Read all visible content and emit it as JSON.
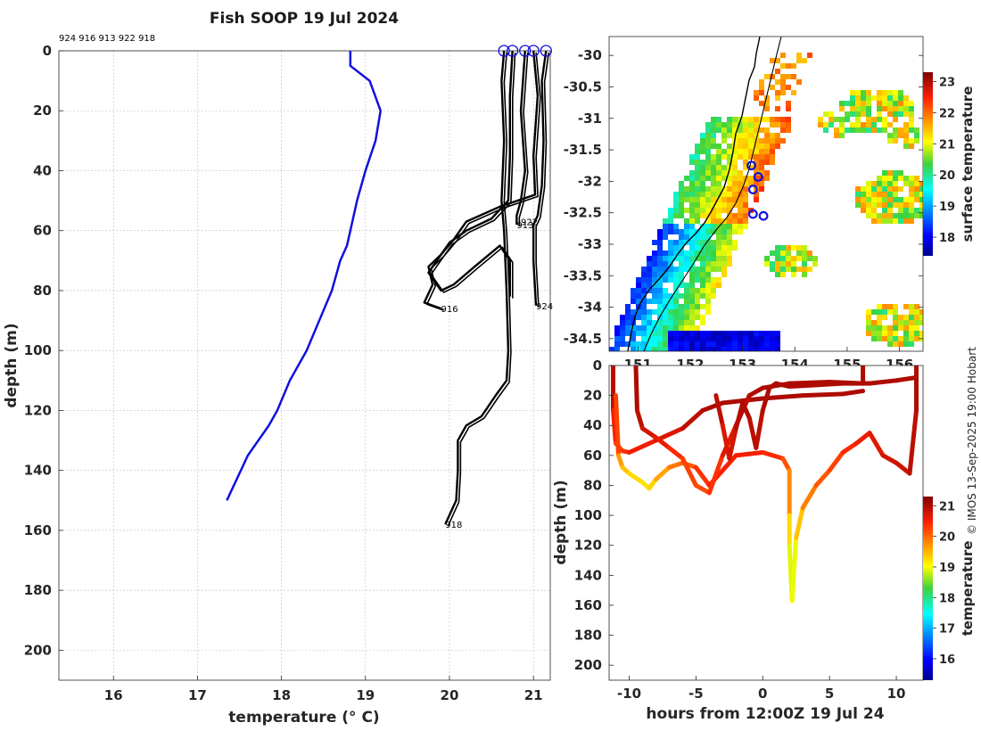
{
  "title": "Fish SOOP 19 Jul 2024",
  "station_ids_header": "924 916 913 922 918",
  "credit": "© IMOS 13-Sep-2025 19:00 Hobart",
  "colors": {
    "clim": "#1010e0",
    "profiles": "#000000",
    "markers": "#1010e0"
  },
  "chart_data": [
    {
      "name": "profiles",
      "type": "line",
      "xlabel": "temperature (° C)",
      "ylabel": "depth (m)",
      "xlim": [
        15.35,
        21.2
      ],
      "ylim": [
        210,
        0
      ],
      "xticks": [
        16,
        17,
        18,
        19,
        20,
        21
      ],
      "yticks": [
        0,
        20,
        40,
        60,
        80,
        100,
        120,
        140,
        160,
        180,
        200
      ],
      "grid": true,
      "climatology": {
        "name": "climatology",
        "points": [
          [
            18.82,
            0
          ],
          [
            18.82,
            5
          ],
          [
            19.05,
            10
          ],
          [
            19.18,
            20
          ],
          [
            19.12,
            30
          ],
          [
            19.0,
            40
          ],
          [
            18.9,
            50
          ],
          [
            18.78,
            65
          ],
          [
            18.7,
            70
          ],
          [
            18.6,
            80
          ],
          [
            18.45,
            90
          ],
          [
            18.3,
            100
          ],
          [
            18.1,
            110
          ],
          [
            17.95,
            120
          ],
          [
            17.85,
            125
          ],
          [
            17.6,
            135
          ],
          [
            17.35,
            150
          ]
        ]
      },
      "series": [
        {
          "name": "924",
          "label": "924",
          "label_at": [
            21.03,
            85
          ],
          "points": [
            [
              21.15,
              0
            ],
            [
              21.1,
              10
            ],
            [
              21.12,
              30
            ],
            [
              21.1,
              45
            ],
            [
              21.05,
              55
            ],
            [
              21.0,
              58
            ],
            [
              21.0,
              70
            ],
            [
              21.02,
              80
            ],
            [
              21.03,
              85
            ]
          ]
        },
        {
          "name": "916",
          "label": "916",
          "label_at": [
            19.9,
            86
          ],
          "points": [
            [
              21.0,
              0
            ],
            [
              21.05,
              15
            ],
            [
              21.0,
              35
            ],
            [
              21.02,
              48
            ],
            [
              20.6,
              52
            ],
            [
              20.2,
              57
            ],
            [
              20.05,
              63
            ],
            [
              19.9,
              68
            ],
            [
              19.75,
              72
            ],
            [
              19.8,
              78
            ],
            [
              19.7,
              84
            ],
            [
              19.9,
              86
            ]
          ]
        },
        {
          "name": "913",
          "label": "913",
          "label_at": [
            20.8,
            58
          ],
          "points": [
            [
              20.9,
              0
            ],
            [
              20.85,
              20
            ],
            [
              20.9,
              40
            ],
            [
              20.85,
              50
            ],
            [
              20.8,
              55
            ],
            [
              20.8,
              58
            ]
          ]
        },
        {
          "name": "922",
          "label": "922",
          "label_at": [
            20.85,
            57
          ],
          "points": [
            [
              20.75,
              0
            ],
            [
              20.72,
              15
            ],
            [
              20.72,
              35
            ],
            [
              20.7,
              50
            ],
            [
              20.5,
              56
            ],
            [
              20.2,
              60
            ],
            [
              20.0,
              64
            ],
            [
              19.85,
              70
            ],
            [
              19.75,
              74
            ],
            [
              19.9,
              80
            ],
            [
              20.05,
              78
            ],
            [
              20.3,
              72
            ],
            [
              20.6,
              65
            ],
            [
              20.72,
              70
            ],
            [
              20.72,
              82
            ]
          ]
        },
        {
          "name": "918",
          "label": "918",
          "label_at": [
            19.95,
            158
          ],
          "points": [
            [
              20.65,
              0
            ],
            [
              20.62,
              10
            ],
            [
              20.65,
              30
            ],
            [
              20.62,
              50
            ],
            [
              20.65,
              60
            ],
            [
              20.68,
              80
            ],
            [
              20.7,
              100
            ],
            [
              20.68,
              110
            ],
            [
              20.55,
              115
            ],
            [
              20.38,
              122
            ],
            [
              20.2,
              125
            ],
            [
              20.1,
              130
            ],
            [
              20.1,
              140
            ],
            [
              20.08,
              150
            ],
            [
              19.95,
              158
            ]
          ]
        }
      ]
    },
    {
      "name": "surface_map",
      "type": "heatmap",
      "colorbar_label": "surface temperature",
      "xticks": [
        151,
        152,
        153,
        154,
        155,
        156
      ],
      "xtick_labels": [
        "151",
        "152",
        "153",
        "154",
        "155",
        "156"
      ],
      "xlim": [
        150.45,
        156.45
      ],
      "ylim": [
        -34.7,
        -29.7
      ],
      "yticks": [
        -30,
        -30.5,
        -31,
        -31.5,
        -32,
        -32.5,
        -33,
        -33.5,
        -34,
        -34.5
      ],
      "clim": [
        17.4,
        23.3
      ],
      "cbticks": [
        18,
        19,
        20,
        21,
        22,
        23
      ],
      "stations": [
        {
          "lon": 153.17,
          "lat": -31.75
        },
        {
          "lon": 153.3,
          "lat": -31.93
        },
        {
          "lon": 153.2,
          "lat": -32.13
        },
        {
          "lon": 153.2,
          "lat": -32.52
        },
        {
          "lon": 153.4,
          "lat": -32.55
        }
      ]
    },
    {
      "name": "time_depth",
      "type": "scatter",
      "xlabel": "hours from 12:00Z 19 Jul 24",
      "ylabel": "depth (m)",
      "xlim": [
        -11.5,
        12
      ],
      "ylim": [
        210,
        0
      ],
      "xticks": [
        -10,
        -5,
        0,
        5,
        10
      ],
      "yticks": [
        0,
        20,
        40,
        60,
        80,
        100,
        120,
        140,
        160,
        180,
        200
      ],
      "colorbar_label": "temperature",
      "clim": [
        15.3,
        21.3
      ],
      "cbticks": [
        16,
        17,
        18,
        19,
        20,
        21
      ],
      "tracks": [
        {
          "name": "t1",
          "points": [
            [
              -11.2,
              0,
              21
            ],
            [
              -11.2,
              30,
              20.8
            ],
            [
              -11,
              52,
              20.2
            ],
            [
              -10.5,
              57,
              20.2
            ],
            [
              -10,
              58,
              20.5
            ],
            [
              -8,
              50,
              20.6
            ],
            [
              -6,
              42,
              20.8
            ],
            [
              -4.5,
              30,
              21
            ],
            [
              -3,
              25,
              21
            ],
            [
              0,
              22,
              21
            ],
            [
              3,
              20,
              21
            ],
            [
              6,
              19,
              21
            ],
            [
              7.5,
              17,
              21
            ]
          ]
        },
        {
          "name": "t2",
          "points": [
            [
              -11,
              20,
              20.7
            ],
            [
              -10.8,
              60,
              19.8
            ],
            [
              -10.5,
              68,
              19.5
            ],
            [
              -10,
              72,
              19.3
            ],
            [
              -9,
              78,
              19.2
            ],
            [
              -8.5,
              82,
              19.2
            ],
            [
              -8,
              76,
              19.4
            ],
            [
              -7,
              68,
              19.8
            ],
            [
              -6,
              65,
              20
            ],
            [
              -5,
              68,
              20.2
            ],
            [
              -4,
              80,
              20.5
            ],
            [
              -3,
              70,
              20.5
            ],
            [
              -2,
              60,
              20.5
            ],
            [
              0,
              58,
              20.5
            ],
            [
              1.5,
              62,
              20.3
            ],
            [
              2,
              70,
              20
            ],
            [
              2,
              100,
              19.5
            ],
            [
              2,
              120,
              19
            ],
            [
              2.2,
              157,
              18.8
            ],
            [
              2.5,
              115,
              19.1
            ],
            [
              3,
              95,
              19.7
            ],
            [
              4,
              80,
              20
            ],
            [
              5,
              70,
              20.2
            ],
            [
              6,
              58,
              20.3
            ],
            [
              7,
              52,
              20.5
            ],
            [
              8,
              45,
              20.6
            ],
            [
              9,
              60,
              20.7
            ],
            [
              10,
              65,
              20.8
            ],
            [
              11,
              72,
              20.8
            ],
            [
              11.5,
              30,
              21
            ],
            [
              11.5,
              0,
              21
            ]
          ]
        },
        {
          "name": "t3",
          "points": [
            [
              -9.5,
              0,
              21
            ],
            [
              -9.4,
              30,
              21
            ],
            [
              -9,
              42,
              20.8
            ],
            [
              -8,
              48,
              20.7
            ],
            [
              -7,
              55,
              20.5
            ],
            [
              -6,
              62,
              20.3
            ],
            [
              -5,
              80,
              20.2
            ],
            [
              -4,
              85,
              20.2
            ],
            [
              -3,
              60,
              20.5
            ],
            [
              -2,
              40,
              20.8
            ],
            [
              -1,
              20,
              21
            ],
            [
              0,
              15,
              21
            ],
            [
              2,
              12,
              21
            ],
            [
              5,
              11,
              21
            ],
            [
              7.5,
              12,
              21
            ],
            [
              7.5,
              0,
              21
            ]
          ]
        },
        {
          "name": "t4",
          "points": [
            [
              -3.5,
              20,
              21
            ],
            [
              -3,
              40,
              20.8
            ],
            [
              -2.5,
              62,
              20.6
            ],
            [
              -2,
              42,
              20.9
            ],
            [
              -1.5,
              25,
              21
            ],
            [
              -1,
              35,
              21
            ],
            [
              -0.5,
              55,
              20.8
            ],
            [
              0,
              30,
              21
            ],
            [
              0.5,
              15,
              21
            ],
            [
              1,
              12,
              21
            ],
            [
              2,
              14,
              21
            ],
            [
              4,
              13,
              21
            ],
            [
              6,
              12,
              21
            ],
            [
              8,
              12,
              21
            ],
            [
              10,
              10,
              21
            ],
            [
              11.5,
              8,
              21
            ]
          ]
        }
      ]
    }
  ]
}
